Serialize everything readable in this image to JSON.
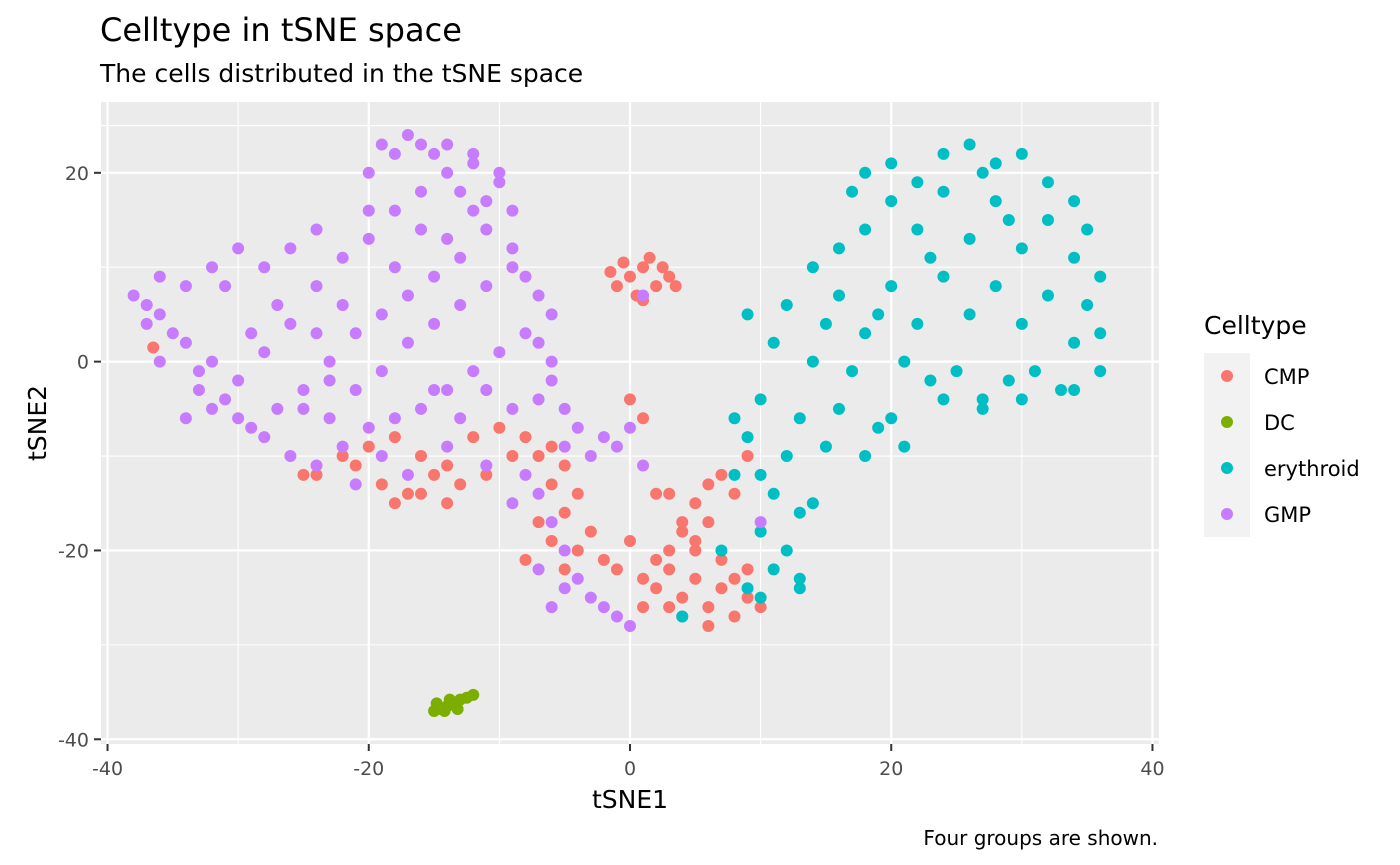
{
  "chart_data": {
    "type": "scatter",
    "title": "Celltype in tSNE space",
    "subtitle": "The cells distributed in the tSNE space",
    "caption": "Four groups are shown.",
    "xlabel": "tSNE1",
    "ylabel": "tSNE2",
    "xlim": [
      -40.5,
      40.5
    ],
    "ylim": [
      -40.5,
      27.5
    ],
    "x_ticks": [
      -40,
      -20,
      0,
      20,
      40
    ],
    "y_ticks": [
      -40,
      -20,
      0,
      20
    ],
    "x_tick_labels": [
      "-40",
      "-20",
      "0",
      "20",
      "40"
    ],
    "y_tick_labels": [
      "-40",
      "-20",
      "0",
      "20"
    ],
    "grid": true,
    "legend": {
      "title": "Celltype",
      "position": "right"
    },
    "series": [
      {
        "name": "CMP",
        "color": "#F8766D",
        "points": [
          [
            0,
            9
          ],
          [
            1,
            10
          ],
          [
            2,
            8
          ],
          [
            -1,
            8
          ],
          [
            3,
            9
          ],
          [
            0.5,
            7
          ],
          [
            -0.5,
            10.5
          ],
          [
            1.5,
            11
          ],
          [
            2.5,
            10
          ],
          [
            3.5,
            8
          ],
          [
            -1.5,
            9.5
          ],
          [
            1,
            6.5
          ],
          [
            -36.5,
            1.5
          ],
          [
            -20,
            -9
          ],
          [
            -18,
            -8
          ],
          [
            -16,
            -10
          ],
          [
            -14,
            -11
          ],
          [
            -12,
            -8
          ],
          [
            -10,
            -7
          ],
          [
            -19,
            -13
          ],
          [
            -17,
            -14
          ],
          [
            -15,
            -12
          ],
          [
            -13,
            -13
          ],
          [
            -11,
            -12
          ],
          [
            -22,
            -10
          ],
          [
            -24,
            -12
          ],
          [
            -25,
            -12
          ],
          [
            -21,
            -11
          ],
          [
            -16,
            -14
          ],
          [
            -14,
            -15
          ],
          [
            -18,
            -15
          ],
          [
            -9,
            -10
          ],
          [
            -8,
            -8
          ],
          [
            -7,
            -10
          ],
          [
            -6,
            -13
          ],
          [
            -5,
            -16
          ],
          [
            -7,
            -17
          ],
          [
            -6,
            -19
          ],
          [
            -8,
            -21
          ],
          [
            -5,
            -22
          ],
          [
            -4,
            -20
          ],
          [
            -3,
            -18
          ],
          [
            -2,
            -21
          ],
          [
            -1,
            -22
          ],
          [
            0,
            -19
          ],
          [
            1,
            -23
          ],
          [
            -5,
            -11
          ],
          [
            -4,
            -14
          ],
          [
            -6,
            -9
          ],
          [
            0,
            -4
          ],
          [
            1,
            -6
          ],
          [
            2,
            -14
          ],
          [
            3,
            -14
          ],
          [
            2,
            -24
          ],
          [
            3,
            -22
          ],
          [
            4,
            -25
          ],
          [
            5,
            -23
          ],
          [
            6,
            -26
          ],
          [
            7,
            -24
          ],
          [
            8,
            -27
          ],
          [
            9,
            -25
          ],
          [
            10,
            -26
          ],
          [
            4,
            -27
          ],
          [
            3,
            -26
          ],
          [
            6,
            -28
          ],
          [
            8,
            -23
          ],
          [
            5,
            -20
          ],
          [
            7,
            -21
          ],
          [
            4,
            -18
          ],
          [
            6,
            -17
          ],
          [
            3,
            -20
          ],
          [
            9,
            -22
          ],
          [
            2,
            -21
          ],
          [
            1,
            -26
          ],
          [
            5,
            -15
          ],
          [
            6,
            -13
          ],
          [
            8,
            -14
          ],
          [
            7,
            -12
          ],
          [
            9,
            -10
          ],
          [
            4,
            -17
          ],
          [
            5,
            -19
          ]
        ]
      },
      {
        "name": "DC",
        "color": "#7CAE00",
        "points": [
          [
            -15,
            -37
          ],
          [
            -14.5,
            -36.8
          ],
          [
            -14,
            -36.5
          ],
          [
            -13.5,
            -36.2
          ],
          [
            -13,
            -35.8
          ],
          [
            -12.5,
            -35.6
          ],
          [
            -12,
            -35.3
          ],
          [
            -14.8,
            -36.2
          ],
          [
            -13.8,
            -35.8
          ],
          [
            -13.2,
            -36.8
          ],
          [
            -14.2,
            -37
          ]
        ]
      },
      {
        "name": "erythroid",
        "color": "#00BFC4",
        "points": [
          [
            18,
            20
          ],
          [
            20,
            21
          ],
          [
            22,
            19
          ],
          [
            24,
            22
          ],
          [
            26,
            23
          ],
          [
            28,
            21
          ],
          [
            30,
            22
          ],
          [
            32,
            19
          ],
          [
            34,
            17
          ],
          [
            20,
            17
          ],
          [
            24,
            18
          ],
          [
            28,
            17
          ],
          [
            32,
            15
          ],
          [
            16,
            12
          ],
          [
            18,
            14
          ],
          [
            22,
            14
          ],
          [
            26,
            13
          ],
          [
            30,
            12
          ],
          [
            34,
            11
          ],
          [
            36,
            9
          ],
          [
            14,
            10
          ],
          [
            16,
            7
          ],
          [
            20,
            8
          ],
          [
            24,
            9
          ],
          [
            28,
            8
          ],
          [
            32,
            7
          ],
          [
            36,
            3
          ],
          [
            12,
            6
          ],
          [
            15,
            4
          ],
          [
            18,
            3
          ],
          [
            22,
            4
          ],
          [
            26,
            5
          ],
          [
            30,
            4
          ],
          [
            34,
            2
          ],
          [
            9,
            5
          ],
          [
            11,
            2
          ],
          [
            14,
            0
          ],
          [
            17,
            -1
          ],
          [
            21,
            0
          ],
          [
            25,
            -1
          ],
          [
            29,
            -2
          ],
          [
            33,
            -3
          ],
          [
            36,
            -1
          ],
          [
            10,
            -4
          ],
          [
            13,
            -6
          ],
          [
            16,
            -5
          ],
          [
            20,
            -6
          ],
          [
            24,
            -4
          ],
          [
            27,
            -5
          ],
          [
            30,
            -4
          ],
          [
            34,
            -3
          ],
          [
            9,
            -8
          ],
          [
            12,
            -10
          ],
          [
            15,
            -9
          ],
          [
            18,
            -10
          ],
          [
            21,
            -9
          ],
          [
            8,
            -12
          ],
          [
            11,
            -14
          ],
          [
            13,
            -16
          ],
          [
            10,
            -18
          ],
          [
            12,
            -20
          ],
          [
            11,
            -22
          ],
          [
            9,
            -24
          ],
          [
            13,
            -24
          ],
          [
            10,
            -25
          ],
          [
            7,
            -20
          ],
          [
            8,
            -6
          ],
          [
            10,
            -12
          ],
          [
            14,
            -15
          ],
          [
            19,
            -7
          ],
          [
            23,
            -2
          ],
          [
            27,
            -4
          ],
          [
            31,
            -1
          ],
          [
            35,
            6
          ],
          [
            17,
            18
          ],
          [
            27,
            20
          ],
          [
            35,
            14
          ],
          [
            19,
            5
          ],
          [
            23,
            11
          ],
          [
            29,
            15
          ],
          [
            4,
            -27
          ],
          [
            13,
            -23
          ]
        ]
      },
      {
        "name": "GMP",
        "color": "#C77CFF",
        "points": [
          [
            -38,
            7
          ],
          [
            -36,
            5
          ],
          [
            -34,
            2
          ],
          [
            -32,
            0
          ],
          [
            -30,
            -2
          ],
          [
            -28,
            1
          ],
          [
            -26,
            4
          ],
          [
            -24,
            8
          ],
          [
            -22,
            11
          ],
          [
            -20,
            13
          ],
          [
            -18,
            16
          ],
          [
            -16,
            18
          ],
          [
            -14,
            20
          ],
          [
            -12,
            22
          ],
          [
            -10,
            19
          ],
          [
            -9,
            16
          ],
          [
            -11,
            14
          ],
          [
            -13,
            11
          ],
          [
            -15,
            9
          ],
          [
            -17,
            7
          ],
          [
            -19,
            5
          ],
          [
            -21,
            3
          ],
          [
            -23,
            0
          ],
          [
            -25,
            -3
          ],
          [
            -27,
            -5
          ],
          [
            -29,
            -7
          ],
          [
            -31,
            -4
          ],
          [
            -33,
            -1
          ],
          [
            -35,
            3
          ],
          [
            -37,
            6
          ],
          [
            -36,
            9
          ],
          [
            -34,
            8
          ],
          [
            -32,
            10
          ],
          [
            -30,
            12
          ],
          [
            -28,
            10
          ],
          [
            -26,
            12
          ],
          [
            -24,
            14
          ],
          [
            -20,
            20
          ],
          [
            -18,
            22
          ],
          [
            -16,
            23
          ],
          [
            -14,
            23
          ],
          [
            -12,
            21
          ],
          [
            -10,
            20
          ],
          [
            -19,
            23
          ],
          [
            -17,
            24
          ],
          [
            -15,
            22
          ],
          [
            -13,
            18
          ],
          [
            -11,
            17
          ],
          [
            -9,
            12
          ],
          [
            -8,
            9
          ],
          [
            -7,
            7
          ],
          [
            -6,
            5
          ],
          [
            -8,
            3
          ],
          [
            -10,
            1
          ],
          [
            -12,
            -1
          ],
          [
            -14,
            -3
          ],
          [
            -16,
            -5
          ],
          [
            -18,
            -6
          ],
          [
            -20,
            -7
          ],
          [
            -22,
            -9
          ],
          [
            -24,
            -11
          ],
          [
            -26,
            -10
          ],
          [
            -28,
            -8
          ],
          [
            -30,
            -6
          ],
          [
            -32,
            -5
          ],
          [
            -34,
            -6
          ],
          [
            -21,
            -3
          ],
          [
            -19,
            -1
          ],
          [
            -17,
            2
          ],
          [
            -15,
            4
          ],
          [
            -13,
            6
          ],
          [
            -11,
            8
          ],
          [
            -9,
            10
          ],
          [
            -7,
            2
          ],
          [
            -6,
            0
          ],
          [
            -7,
            -4
          ],
          [
            -9,
            -5
          ],
          [
            -11,
            -3
          ],
          [
            -5,
            -5
          ],
          [
            -6,
            -2
          ],
          [
            -8,
            -12
          ],
          [
            -7,
            -14
          ],
          [
            -6,
            -17
          ],
          [
            -5,
            -20
          ],
          [
            -7,
            -22
          ],
          [
            -5,
            -24
          ],
          [
            -3,
            -25
          ],
          [
            -1,
            -27
          ],
          [
            0,
            -28
          ],
          [
            -2,
            -26
          ],
          [
            -4,
            -23
          ],
          [
            -3,
            -10
          ],
          [
            -1,
            -9
          ],
          [
            0,
            -7
          ],
          [
            -2,
            -8
          ],
          [
            -5,
            -9
          ],
          [
            -4,
            -7
          ],
          [
            1,
            -11
          ],
          [
            -6,
            -26
          ],
          [
            10,
            -17
          ],
          [
            -25,
            -5
          ],
          [
            -23,
            -2
          ],
          [
            -29,
            3
          ],
          [
            -31,
            8
          ],
          [
            -27,
            6
          ],
          [
            -22,
            6
          ],
          [
            -18,
            10
          ],
          [
            -14,
            13
          ],
          [
            -12,
            16
          ],
          [
            -20,
            16
          ],
          [
            -16,
            14
          ],
          [
            -24,
            3
          ],
          [
            -33,
            -3
          ],
          [
            -37,
            4
          ],
          [
            -36,
            0
          ],
          [
            -15,
            -3
          ],
          [
            -13,
            -6
          ],
          [
            -19,
            -10
          ],
          [
            -17,
            -12
          ],
          [
            -21,
            -13
          ],
          [
            -23,
            -6
          ],
          [
            1,
            7
          ],
          [
            -9,
            -15
          ],
          [
            -11,
            -11
          ],
          [
            -14,
            -9
          ]
        ]
      }
    ]
  }
}
